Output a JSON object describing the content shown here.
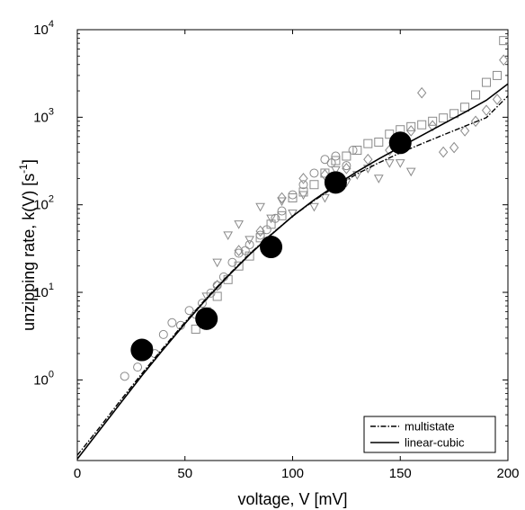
{
  "chart_data": {
    "type": "scatter",
    "xlabel": "voltage, V [mV]",
    "ylabel_main": "unzipping rate, k(V) [s",
    "ylabel_sup": "-1",
    "ylabel_close": "]",
    "xlim": [
      0,
      200
    ],
    "ylim": [
      0.12,
      10000
    ],
    "y_scale": "log",
    "x_ticks": [
      0,
      50,
      100,
      150,
      200
    ],
    "x_tick_labels": [
      "0",
      "50",
      "100",
      "150",
      "200"
    ],
    "y_ticks": [
      1,
      10,
      100,
      1000,
      10000
    ],
    "y_tick_labels": [
      {
        "base": "10",
        "exp": "0"
      },
      {
        "base": "10",
        "exp": "1"
      },
      {
        "base": "10",
        "exp": "2"
      },
      {
        "base": "10",
        "exp": "3"
      },
      {
        "base": "10",
        "exp": "4"
      }
    ],
    "grid": false,
    "legend_position": "bottom-right",
    "series": [
      {
        "name": "",
        "marker": "circle-large-filled",
        "color": "#000000",
        "x": [
          30,
          60,
          90,
          120,
          150
        ],
        "y": [
          2.2,
          5.0,
          33,
          180,
          510
        ]
      },
      {
        "name": "",
        "marker": "circle-open",
        "color": "#8a8a8a",
        "x": [
          22,
          28,
          33,
          36,
          40,
          44,
          48,
          52,
          55,
          58,
          62,
          65,
          68,
          72,
          75,
          78,
          80,
          85,
          88,
          92,
          95,
          100,
          105,
          110,
          115,
          118,
          120,
          125,
          128
        ],
        "y": [
          1.1,
          1.4,
          2.4,
          2.0,
          3.3,
          4.5,
          4.2,
          6.2,
          5.6,
          7.5,
          9.8,
          12,
          15,
          22,
          28,
          30,
          35,
          45,
          52,
          70,
          85,
          130,
          170,
          230,
          330,
          300,
          360,
          280,
          420
        ]
      },
      {
        "name": "",
        "marker": "square-open",
        "color": "#8a8a8a",
        "x": [
          55,
          60,
          65,
          70,
          75,
          80,
          85,
          90,
          95,
          100,
          105,
          110,
          115,
          120,
          125,
          130,
          135,
          140,
          145,
          150,
          155,
          160,
          165,
          170,
          175,
          180,
          185,
          190,
          195,
          198
        ],
        "y": [
          3.8,
          6.0,
          9.0,
          14,
          20,
          26,
          42,
          60,
          75,
          120,
          140,
          170,
          230,
          320,
          360,
          420,
          500,
          520,
          640,
          720,
          780,
          820,
          900,
          980,
          1100,
          1300,
          1800,
          2500,
          3000,
          7500
        ]
      },
      {
        "name": "",
        "marker": "triangle-down-open",
        "color": "#8a8a8a",
        "x": [
          60,
          65,
          70,
          75,
          80,
          85,
          90,
          95,
          100,
          105,
          110,
          115,
          120,
          125,
          130,
          135,
          140,
          145,
          150,
          155
        ],
        "y": [
          9,
          22,
          45,
          60,
          40,
          95,
          70,
          110,
          80,
          130,
          95,
          120,
          250,
          180,
          220,
          260,
          200,
          300,
          300,
          240
        ]
      },
      {
        "name": "",
        "marker": "diamond-open",
        "color": "#8a8a8a",
        "x": [
          65,
          75,
          85,
          95,
          105,
          115,
          125,
          135,
          145,
          150,
          155,
          160,
          165,
          170,
          175,
          180,
          185,
          190,
          195,
          198
        ],
        "y": [
          12,
          30,
          50,
          120,
          200,
          220,
          260,
          330,
          420,
          550,
          700,
          1900,
          800,
          400,
          450,
          700,
          900,
          1200,
          1600,
          4500
        ]
      },
      {
        "name": "multistate",
        "line": "dashdot",
        "color": "#000000",
        "x": [
          0,
          10,
          20,
          30,
          40,
          50,
          60,
          70,
          80,
          90,
          100,
          110,
          120,
          130,
          140,
          150,
          160,
          170,
          180,
          190,
          200
        ],
        "y": [
          0.138,
          0.28,
          0.58,
          1.18,
          2.34,
          4.55,
          8.6,
          15.6,
          27.5,
          46,
          74,
          112,
          162,
          226,
          302,
          392,
          498,
          628,
          790,
          990,
          1750
        ]
      },
      {
        "name": "linear-cubic",
        "line": "solid",
        "color": "#000000",
        "x": [
          0,
          10,
          20,
          30,
          40,
          50,
          60,
          70,
          80,
          90,
          100,
          110,
          120,
          130,
          140,
          150,
          160,
          170,
          180,
          190,
          200
        ],
        "y": [
          0.125,
          0.26,
          0.54,
          1.12,
          2.24,
          4.4,
          8.4,
          15.3,
          27,
          45.5,
          74,
          114,
          168,
          240,
          334,
          458,
          620,
          840,
          1140,
          1560,
          2400
        ]
      }
    ]
  }
}
